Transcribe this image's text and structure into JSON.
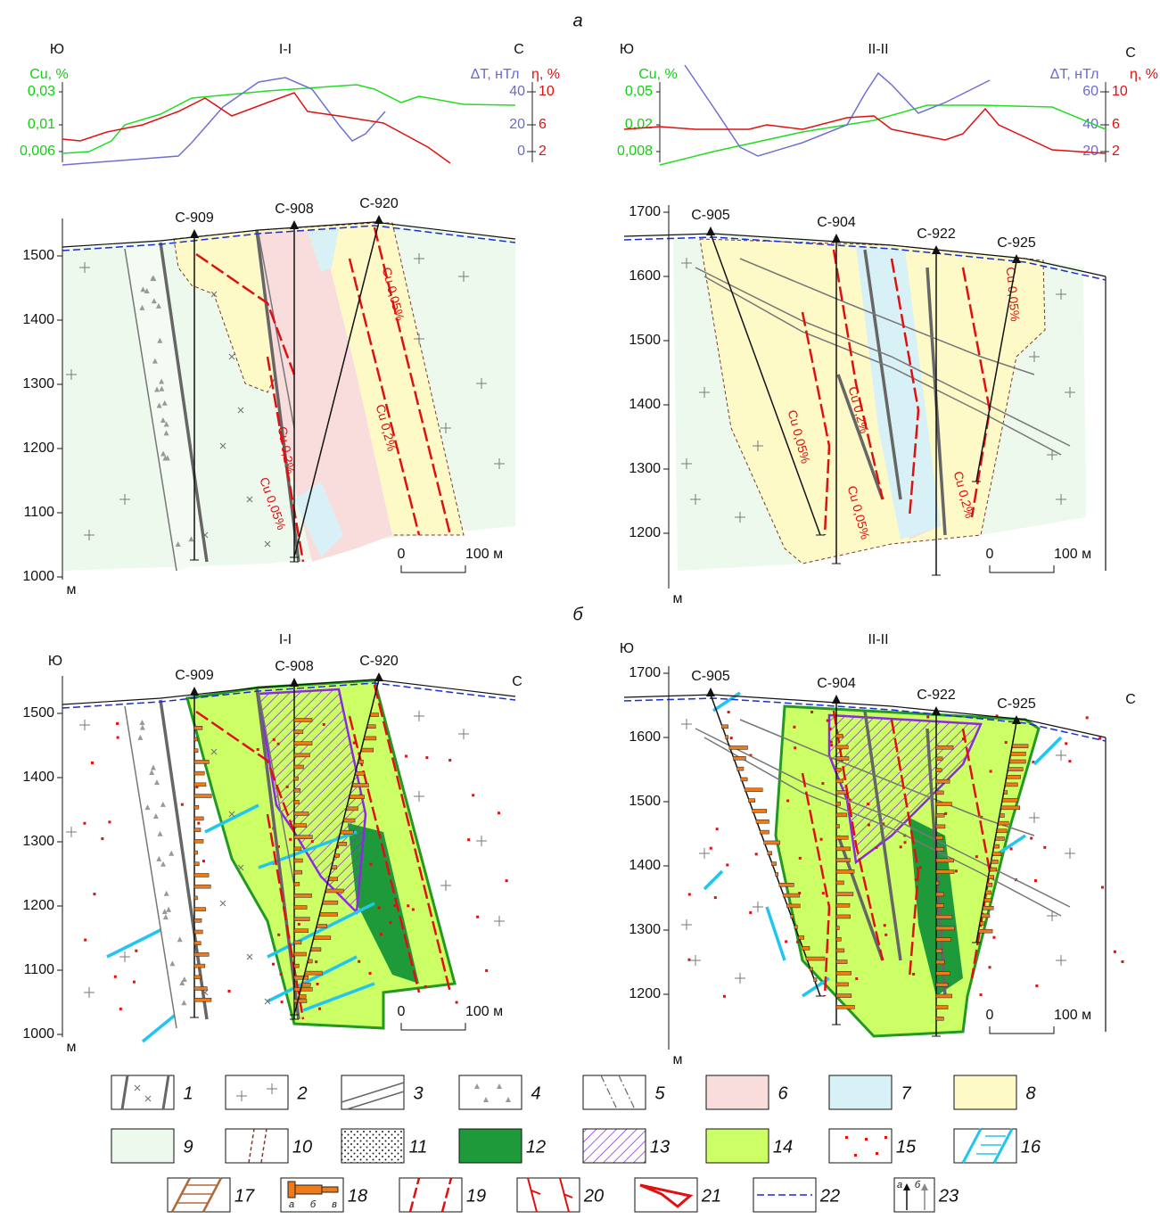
{
  "panels": [
    {
      "letter": "а",
      "sections": [
        {
          "title": "I-I",
          "south": "Ю",
          "north": "С",
          "cu_label": "Cu, %",
          "dt_label": "ΔT, нТл",
          "eta_label": "η, %",
          "cu_ticks": [
            "0,03",
            "0,01",
            "0,006"
          ],
          "dt_ticks": [
            "40",
            "20",
            "0"
          ],
          "eta_ticks": [
            "10",
            "6",
            "2"
          ],
          "wells": [
            "С-909",
            "С-908",
            "С-920"
          ],
          "elevations": [
            "1500",
            "1400",
            "1300",
            "1200",
            "1100",
            "1000"
          ],
          "unit": "м",
          "scale": [
            "0",
            "100 м"
          ],
          "contours": [
            "Cu 0,05%",
            "Cu 0,2%",
            "Cu 0,2%",
            "Cu 0,05%"
          ]
        },
        {
          "title": "II-II",
          "south": "Ю",
          "north": "С",
          "cu_label": "Cu, %",
          "dt_label": "ΔT, нТл",
          "eta_label": "η, %",
          "cu_ticks": [
            "0,05",
            "0,02",
            "0,008"
          ],
          "dt_ticks": [
            "60",
            "40",
            "20"
          ],
          "eta_ticks": [
            "10",
            "6",
            "2"
          ],
          "wells": [
            "С-905",
            "С-904",
            "С-922",
            "С-925"
          ],
          "elevations": [
            "1700",
            "1600",
            "1500",
            "1400",
            "1300",
            "1200"
          ],
          "unit": "м",
          "scale": [
            "0",
            "100 м"
          ],
          "contours": [
            "Cu 0,05%",
            "Cu 0,2%",
            "Cu 0,05%",
            "Cu 0,2%",
            "Cu 0,05%"
          ]
        }
      ]
    },
    {
      "letter": "б",
      "sections": [
        {
          "title": "I-I",
          "south": "Ю",
          "north": "С",
          "wells": [
            "С-909",
            "С-908",
            "С-920"
          ],
          "elevations": [
            "1500",
            "1400",
            "1300",
            "1200",
            "1100",
            "1000"
          ],
          "unit": "м",
          "scale": [
            "0",
            "100 м"
          ]
        },
        {
          "title": "II-II",
          "south": "Ю",
          "north": "С",
          "wells": [
            "С-905",
            "С-904",
            "С-922",
            "С-925"
          ],
          "elevations": [
            "1700",
            "1600",
            "1500",
            "1400",
            "1300",
            "1200"
          ],
          "unit": "м",
          "scale": [
            "0",
            "100 м"
          ]
        }
      ]
    }
  ],
  "legend": {
    "numbers": [
      "1",
      "2",
      "3",
      "4",
      "5",
      "6",
      "7",
      "8",
      "9",
      "10",
      "11",
      "12",
      "13",
      "14",
      "15",
      "16",
      "17",
      "18",
      "19",
      "20",
      "21",
      "22",
      "23"
    ],
    "sub_18": [
      "а",
      "б",
      "в"
    ],
    "sub_23": [
      "а",
      "б"
    ]
  }
}
